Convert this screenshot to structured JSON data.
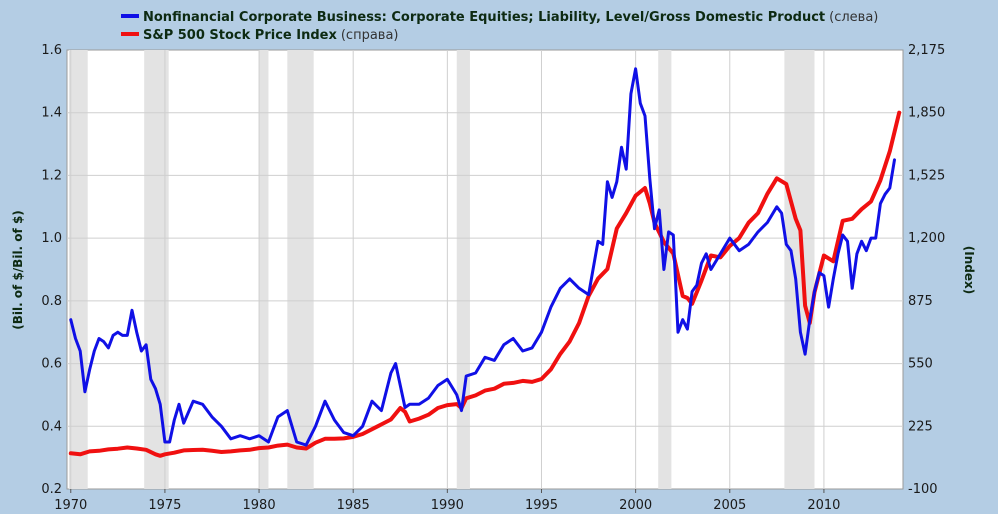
{
  "chart_data": {
    "type": "line",
    "legend": {
      "position": "top-left",
      "entries": [
        {
          "label": "Nonfinancial Corporate Business: Corporate Equities; Liability, Level/Gross Domestic Product",
          "side": "(слева)",
          "color": "#1010e6"
        },
        {
          "label": "S&P 500 Stock Price Index",
          "side": "(справа)",
          "color": "#f01010"
        }
      ]
    },
    "ylabel_left": "(Bil. of $/Bil. of $)",
    "ylabel_right": "(Index)",
    "xlim": [
      1969.8,
      2014.2
    ],
    "ylim_left": [
      0.2,
      1.6
    ],
    "ylim_right": [
      -100,
      2175
    ],
    "x_ticks": [
      1970,
      1975,
      1980,
      1985,
      1990,
      1995,
      2000,
      2005,
      2010
    ],
    "x_tick_labels": [
      "1970",
      "1975",
      "1980",
      "1985",
      "1990",
      "1995",
      "2000",
      "2005",
      "2010"
    ],
    "y_left_ticks": [
      0.2,
      0.4,
      0.6,
      0.8,
      1.0,
      1.2,
      1.4,
      1.6
    ],
    "y_left_tick_labels": [
      "0.2",
      "0.4",
      "0.6",
      "0.8",
      "1.0",
      "1.2",
      "1.4",
      "1.6"
    ],
    "y_right_ticks": [
      -100,
      225,
      550,
      875,
      1200,
      1525,
      1850,
      2175
    ],
    "y_right_tick_labels": [
      "-100",
      "225",
      "550",
      "875",
      "1,200",
      "1,525",
      "1,850",
      "2,175"
    ],
    "grid": true,
    "recessions": [
      [
        1969.9,
        1970.9
      ],
      [
        1973.9,
        1975.2
      ],
      [
        1980.0,
        1980.5
      ],
      [
        1981.5,
        1982.9
      ],
      [
        1990.5,
        1991.2
      ],
      [
        2001.2,
        2001.9
      ],
      [
        2007.9,
        2009.5
      ]
    ],
    "series": [
      {
        "name": "Nonfinancial Corporate Business: Corporate Equities; Liability, Level/Gross Domestic Product",
        "axis": "left",
        "color": "#1010e6",
        "x": [
          1970.0,
          1970.25,
          1970.5,
          1970.75,
          1971.0,
          1971.25,
          1971.5,
          1971.75,
          1972.0,
          1972.25,
          1972.5,
          1972.75,
          1973.0,
          1973.25,
          1973.5,
          1973.75,
          1974.0,
          1974.25,
          1974.5,
          1974.75,
          1975.0,
          1975.25,
          1975.5,
          1975.75,
          1976.0,
          1976.5,
          1977.0,
          1977.5,
          1978.0,
          1978.5,
          1979.0,
          1979.5,
          1980.0,
          1980.5,
          1980.75,
          1981.0,
          1981.5,
          1982.0,
          1982.5,
          1983.0,
          1983.5,
          1984.0,
          1984.5,
          1985.0,
          1985.5,
          1986.0,
          1986.5,
          1987.0,
          1987.25,
          1987.75,
          1988.0,
          1988.5,
          1989.0,
          1989.5,
          1990.0,
          1990.5,
          1990.75,
          1991.0,
          1991.5,
          1992.0,
          1992.5,
          1993.0,
          1993.5,
          1994.0,
          1994.5,
          1995.0,
          1995.5,
          1996.0,
          1996.5,
          1997.0,
          1997.5,
          1998.0,
          1998.25,
          1998.5,
          1998.75,
          1999.0,
          1999.25,
          1999.5,
          1999.75,
          2000.0,
          2000.25,
          2000.5,
          2000.75,
          2001.0,
          2001.25,
          2001.5,
          2001.75,
          2002.0,
          2002.25,
          2002.5,
          2002.75,
          2003.0,
          2003.25,
          2003.5,
          2003.75,
          2004.0,
          2004.5,
          2005.0,
          2005.5,
          2006.0,
          2006.5,
          2007.0,
          2007.5,
          2007.75,
          2008.0,
          2008.25,
          2008.5,
          2008.75,
          2009.0,
          2009.25,
          2009.5,
          2009.75,
          2010.0,
          2010.25,
          2010.5,
          2010.75,
          2011.0,
          2011.25,
          2011.5,
          2011.75,
          2012.0,
          2012.25,
          2012.5,
          2012.75,
          2013.0,
          2013.25,
          2013.5,
          2013.75
        ],
        "values": [
          0.74,
          0.68,
          0.64,
          0.51,
          0.58,
          0.64,
          0.68,
          0.67,
          0.65,
          0.69,
          0.7,
          0.69,
          0.69,
          0.77,
          0.7,
          0.64,
          0.66,
          0.55,
          0.52,
          0.47,
          0.35,
          0.35,
          0.42,
          0.47,
          0.41,
          0.48,
          0.47,
          0.43,
          0.4,
          0.36,
          0.37,
          0.36,
          0.37,
          0.35,
          0.39,
          0.43,
          0.45,
          0.35,
          0.34,
          0.4,
          0.48,
          0.42,
          0.38,
          0.37,
          0.4,
          0.48,
          0.45,
          0.57,
          0.6,
          0.46,
          0.47,
          0.47,
          0.49,
          0.53,
          0.55,
          0.5,
          0.45,
          0.56,
          0.57,
          0.62,
          0.61,
          0.66,
          0.68,
          0.64,
          0.65,
          0.7,
          0.78,
          0.84,
          0.87,
          0.84,
          0.82,
          0.99,
          0.98,
          1.18,
          1.13,
          1.18,
          1.29,
          1.22,
          1.46,
          1.54,
          1.43,
          1.39,
          1.19,
          1.03,
          1.09,
          0.9,
          1.02,
          1.01,
          0.7,
          0.74,
          0.71,
          0.83,
          0.85,
          0.92,
          0.95,
          0.9,
          0.95,
          1.0,
          0.96,
          0.98,
          1.02,
          1.05,
          1.1,
          1.08,
          0.98,
          0.96,
          0.87,
          0.7,
          0.63,
          0.74,
          0.83,
          0.89,
          0.88,
          0.78,
          0.87,
          0.95,
          1.01,
          0.99,
          0.84,
          0.95,
          0.99,
          0.96,
          1.0,
          1.0,
          1.11,
          1.14,
          1.16,
          1.25
        ]
      },
      {
        "name": "S&P 500 Stock Price Index",
        "axis": "right",
        "color": "#f01010",
        "x": [
          1970.0,
          1970.5,
          1971.0,
          1971.5,
          1972.0,
          1972.5,
          1973.0,
          1973.5,
          1974.0,
          1974.5,
          1974.75,
          1975.0,
          1975.5,
          1976.0,
          1976.5,
          1977.0,
          1977.5,
          1978.0,
          1978.5,
          1979.0,
          1979.5,
          1980.0,
          1980.5,
          1981.0,
          1981.5,
          1982.0,
          1982.5,
          1983.0,
          1983.5,
          1984.0,
          1984.5,
          1985.0,
          1985.5,
          1986.0,
          1986.5,
          1987.0,
          1987.5,
          1987.75,
          1988.0,
          1988.5,
          1989.0,
          1989.5,
          1990.0,
          1990.5,
          1990.75,
          1991.0,
          1991.5,
          1992.0,
          1992.5,
          1993.0,
          1993.5,
          1994.0,
          1994.5,
          1995.0,
          1995.5,
          1996.0,
          1996.5,
          1997.0,
          1997.5,
          1998.0,
          1998.5,
          1999.0,
          1999.5,
          2000.0,
          2000.5,
          2000.75,
          2001.0,
          2001.5,
          2002.0,
          2002.5,
          2002.75,
          2003.0,
          2003.5,
          2004.0,
          2004.5,
          2005.0,
          2005.5,
          2006.0,
          2006.5,
          2007.0,
          2007.5,
          2008.0,
          2008.5,
          2008.75,
          2009.0,
          2009.25,
          2009.5,
          2010.0,
          2010.5,
          2011.0,
          2011.5,
          2012.0,
          2012.5,
          2013.0,
          2013.5,
          2014.0
        ],
        "values": [
          85,
          80,
          95,
          98,
          105,
          109,
          115,
          110,
          103,
          80,
          72,
          80,
          88,
          100,
          102,
          103,
          98,
          92,
          95,
          100,
          103,
          112,
          115,
          125,
          130,
          115,
          110,
          140,
          160,
          160,
          162,
          170,
          185,
          210,
          235,
          260,
          320,
          300,
          250,
          265,
          285,
          320,
          335,
          340,
          320,
          370,
          385,
          410,
          420,
          445,
          450,
          460,
          455,
          470,
          520,
          600,
          665,
          760,
          900,
          990,
          1040,
          1250,
          1330,
          1420,
          1460,
          1380,
          1280,
          1180,
          1120,
          900,
          890,
          860,
          980,
          1110,
          1100,
          1160,
          1200,
          1280,
          1330,
          1430,
          1510,
          1480,
          1300,
          1240,
          850,
          760,
          920,
          1110,
          1080,
          1290,
          1300,
          1350,
          1390,
          1500,
          1650,
          1850
        ]
      }
    ]
  }
}
